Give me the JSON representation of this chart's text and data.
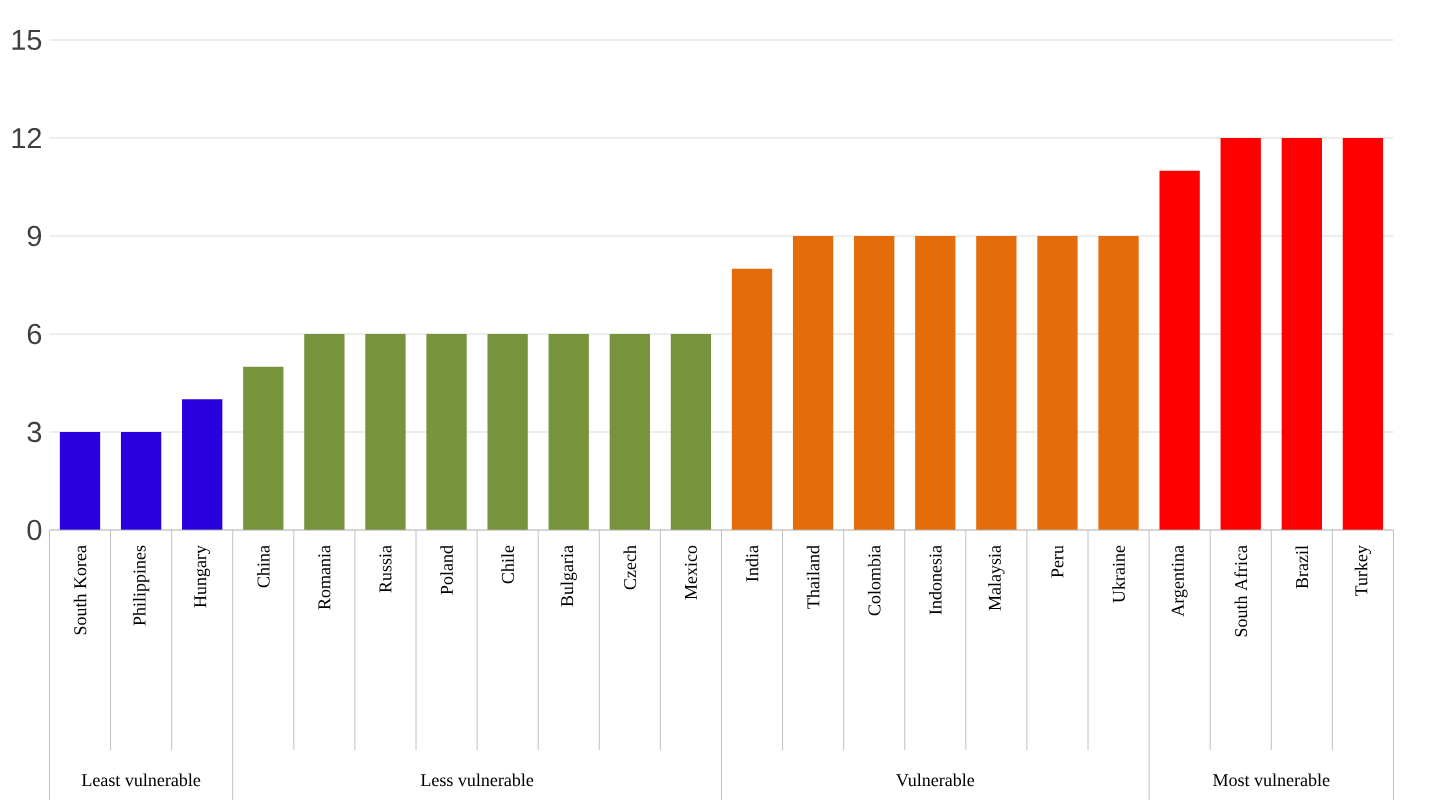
{
  "chart_data": {
    "type": "bar",
    "categories": [
      "South Korea",
      "Philippines",
      "Hungary",
      "China",
      "Romania",
      "Russia",
      "Poland",
      "Chile",
      "Bulgaria",
      "Czech",
      "Mexico",
      "India",
      "Thailand",
      "Colombia",
      "Indonesia",
      "Malaysia",
      "Peru",
      "Ukraine",
      "Argentina",
      "South Africa",
      "Brazil",
      "Turkey"
    ],
    "values": [
      3,
      3,
      4,
      5,
      6,
      6,
      6,
      6,
      6,
      6,
      6,
      8,
      9,
      9,
      9,
      9,
      9,
      9,
      11,
      12,
      12,
      12
    ],
    "colors": [
      "#2a00e0",
      "#2a00e0",
      "#2a00e0",
      "#77933c",
      "#77933c",
      "#77933c",
      "#77933c",
      "#77933c",
      "#77933c",
      "#77933c",
      "#77933c",
      "#e46c0a",
      "#e46c0a",
      "#e46c0a",
      "#e46c0a",
      "#e46c0a",
      "#e46c0a",
      "#e46c0a",
      "#ff0000",
      "#ff0000",
      "#ff0000",
      "#ff0000"
    ],
    "annotations": [
      "Least vulnerable",
      "Less vulnerable",
      "Vulnerable",
      "Most vulnerable"
    ],
    "ylim": [
      0,
      15
    ],
    "yticks": [
      0,
      3,
      6,
      9,
      12,
      15
    ],
    "grid": "y"
  }
}
